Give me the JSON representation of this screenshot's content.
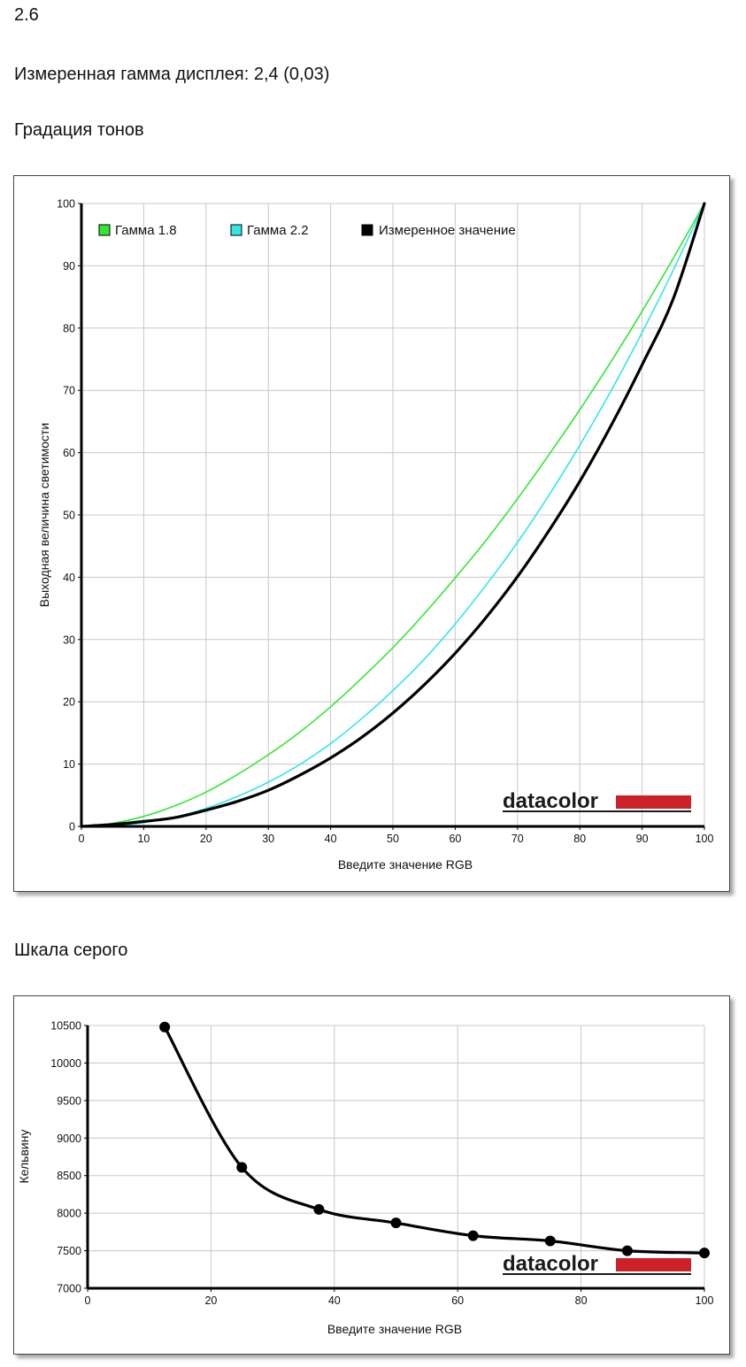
{
  "page": {
    "top_value": "2.6",
    "measured_gamma": "Измеренная гамма дисплея: 2,4 (0,03)",
    "tone_heading": "Градация тонов",
    "gray_heading": "Шкала серого"
  },
  "brand": {
    "text": "datacolor",
    "bar_color": "#cc2127"
  },
  "chart_data": [
    {
      "type": "line",
      "xlabel": "Введите значение RGB",
      "ylabel": "Выходная величина светимости",
      "xlim": [
        0,
        100
      ],
      "ylim": [
        0,
        100
      ],
      "xticks": [
        0,
        10,
        20,
        30,
        40,
        50,
        60,
        70,
        80,
        90,
        100
      ],
      "yticks": [
        0,
        10,
        20,
        30,
        40,
        50,
        60,
        70,
        80,
        90,
        100
      ],
      "grid": true,
      "legend_position": "top-left",
      "series": [
        {
          "name": "Гамма 1.8",
          "color": "#33e633",
          "gamma": 1.8,
          "x": [
            0,
            5,
            10,
            15,
            20,
            25,
            30,
            35,
            40,
            45,
            50,
            55,
            60,
            65,
            70,
            75,
            80,
            85,
            90,
            95,
            100
          ],
          "y": [
            0,
            0.5,
            1.6,
            3.3,
            5.5,
            8.3,
            11.5,
            15.1,
            19.2,
            23.8,
            28.7,
            34.1,
            39.9,
            46.0,
            52.6,
            59.6,
            66.9,
            74.6,
            82.7,
            91.2,
            100
          ]
        },
        {
          "name": "Гамма 2.2",
          "color": "#33e6e6",
          "gamma": 2.2,
          "x": [
            0,
            5,
            10,
            15,
            20,
            25,
            30,
            35,
            40,
            45,
            50,
            55,
            60,
            65,
            70,
            75,
            80,
            85,
            90,
            95,
            100
          ],
          "y": [
            0,
            0.1,
            0.6,
            1.5,
            2.9,
            4.8,
            7.1,
            9.9,
            13.3,
            17.3,
            21.8,
            26.8,
            32.5,
            38.8,
            45.6,
            53.1,
            61.2,
            69.9,
            79.3,
            89.3,
            100
          ]
        },
        {
          "name": "Измеренное значение",
          "color": "#000000",
          "gamma": 2.4,
          "x": [
            0,
            5,
            10,
            15,
            20,
            25,
            30,
            35,
            40,
            45,
            50,
            55,
            60,
            65,
            70,
            75,
            80,
            85,
            90,
            95,
            100
          ],
          "y": [
            0,
            0.3,
            0.8,
            1.4,
            2.6,
            4.0,
            5.8,
            8.2,
            11.0,
            14.3,
            18.2,
            22.7,
            27.8,
            33.6,
            40.1,
            47.4,
            55.4,
            64.3,
            74.1,
            84.7,
            100
          ]
        }
      ]
    },
    {
      "type": "line",
      "xlabel": "Введите значение RGB",
      "ylabel": "Кельвину",
      "xlim": [
        0,
        100
      ],
      "ylim": [
        7000,
        10500
      ],
      "xticks": [
        0,
        20,
        40,
        60,
        80,
        100
      ],
      "yticks": [
        7000,
        7500,
        8000,
        8500,
        9000,
        9500,
        10000,
        10500
      ],
      "grid": true,
      "series": [
        {
          "color": "#000000",
          "x": [
            12.5,
            25,
            37.5,
            50,
            62.5,
            75,
            87.5,
            100
          ],
          "y": [
            10480,
            8610,
            8050,
            7870,
            7700,
            7630,
            7500,
            7470
          ]
        }
      ]
    }
  ]
}
